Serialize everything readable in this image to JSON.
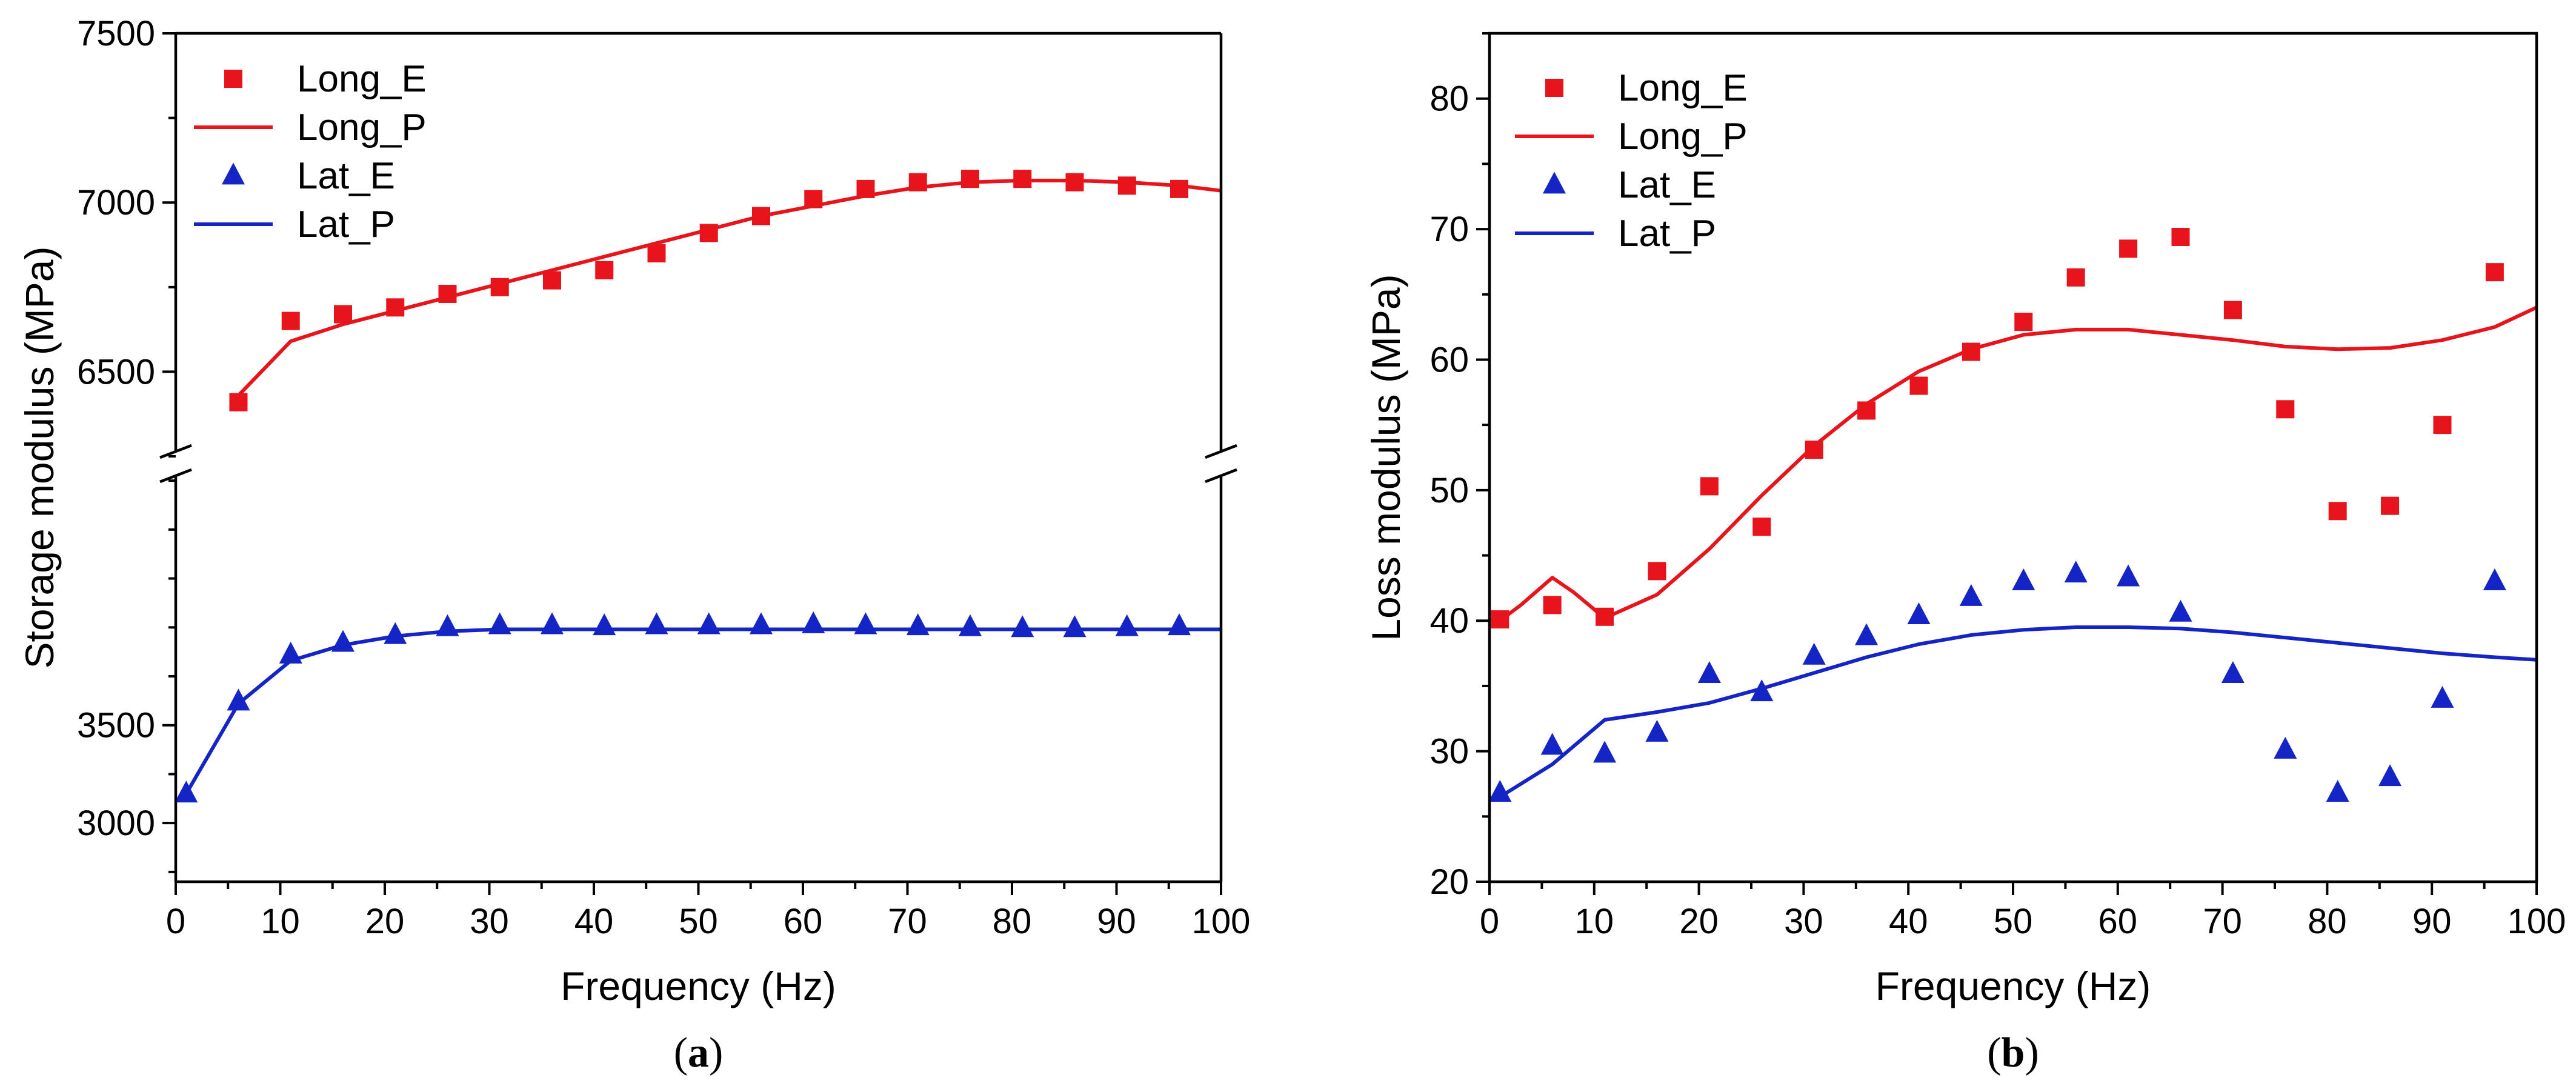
{
  "chart_data": [
    {
      "id": "a",
      "type": "scatter",
      "panel_label": "a",
      "xlabel": "Frequency (Hz)",
      "ylabel": "Storage modulus (MPa)",
      "xlim": [
        0,
        100
      ],
      "x_ticks": [
        0,
        10,
        20,
        30,
        40,
        50,
        60,
        70,
        80,
        90,
        100
      ],
      "y_axis_break": true,
      "y_segments": [
        {
          "range": [
            2700,
            4800
          ],
          "ticks": [
            3000,
            3500
          ]
        },
        {
          "range": [
            6250,
            7500
          ],
          "ticks": [
            6500,
            7000,
            7500
          ]
        }
      ],
      "legend_position": "top-left",
      "series": [
        {
          "name": "Long_E",
          "kind": "markers",
          "marker": "square",
          "color": "#e8141b",
          "x": [
            6,
            11,
            16,
            21,
            26,
            31,
            36,
            41,
            46,
            51,
            56,
            61,
            66,
            71,
            76,
            81,
            86,
            91,
            96
          ],
          "y": [
            6410,
            6650,
            6670,
            6690,
            6730,
            6750,
            6770,
            6800,
            6850,
            6910,
            6960,
            7010,
            7040,
            7060,
            7070,
            7070,
            7060,
            7050,
            7040
          ]
        },
        {
          "name": "Long_P",
          "kind": "line",
          "color": "#e8141b",
          "x": [
            6,
            11,
            16,
            21,
            26,
            31,
            36,
            41,
            46,
            51,
            56,
            61,
            66,
            71,
            76,
            81,
            86,
            91,
            96,
            100
          ],
          "y": [
            6430,
            6590,
            6640,
            6680,
            6720,
            6760,
            6800,
            6840,
            6880,
            6920,
            6960,
            6990,
            7020,
            7045,
            7060,
            7065,
            7065,
            7060,
            7050,
            7035
          ]
        },
        {
          "name": "Lat_E",
          "kind": "markers",
          "marker": "triangle",
          "color": "#1524c4",
          "x": [
            1,
            6,
            11,
            16,
            21,
            26,
            31,
            36,
            41,
            46,
            51,
            56,
            61,
            66,
            71,
            76,
            81,
            86,
            91,
            96
          ],
          "y": [
            3150,
            3620,
            3860,
            3920,
            3960,
            4000,
            4010,
            4010,
            4005,
            4010,
            4010,
            4010,
            4015,
            4010,
            4005,
            4000,
            3995,
            3995,
            4000,
            4005
          ]
        },
        {
          "name": "Lat_P",
          "kind": "line",
          "color": "#1524c4",
          "x": [
            1,
            6,
            11,
            16,
            21,
            26,
            31,
            36,
            41,
            46,
            51,
            56,
            61,
            66,
            71,
            76,
            81,
            86,
            91,
            96,
            100
          ],
          "y": [
            3150,
            3610,
            3830,
            3910,
            3955,
            3980,
            3990,
            3990,
            3990,
            3990,
            3990,
            3990,
            3990,
            3990,
            3990,
            3990,
            3990,
            3990,
            3990,
            3990,
            3990
          ]
        }
      ]
    },
    {
      "id": "b",
      "type": "scatter",
      "panel_label": "b",
      "xlabel": "Frequency (Hz)",
      "ylabel": "Loss modulus (MPa)",
      "xlim": [
        0,
        100
      ],
      "ylim": [
        20,
        85
      ],
      "x_ticks": [
        0,
        10,
        20,
        30,
        40,
        50,
        60,
        70,
        80,
        90,
        100
      ],
      "y_ticks": [
        20,
        30,
        40,
        50,
        60,
        70,
        80
      ],
      "legend_position": "top-left",
      "series": [
        {
          "name": "Long_E",
          "kind": "markers",
          "marker": "square",
          "color": "#e8141b",
          "x": [
            1,
            6,
            11,
            16,
            21,
            26,
            31,
            36,
            41,
            46,
            51,
            56,
            61,
            66,
            71,
            76,
            81,
            86,
            91,
            96
          ],
          "y": [
            40.1,
            41.2,
            40.3,
            43.8,
            50.3,
            47.2,
            53.1,
            56.1,
            58.0,
            60.6,
            62.9,
            66.3,
            68.5,
            69.4,
            63.8,
            56.2,
            48.4,
            48.8,
            55.0,
            66.7
          ]
        },
        {
          "name": "Long_P",
          "kind": "line",
          "color": "#e8141b",
          "x": [
            1,
            3,
            6,
            8,
            11,
            16,
            21,
            26,
            31,
            36,
            41,
            46,
            51,
            56,
            61,
            66,
            71,
            76,
            81,
            86,
            91,
            96,
            100
          ],
          "y": [
            40.0,
            41.2,
            43.3,
            42.2,
            40.2,
            42.0,
            45.5,
            49.6,
            53.4,
            56.6,
            59.1,
            60.8,
            61.9,
            62.3,
            62.3,
            61.9,
            61.5,
            61.0,
            60.8,
            60.9,
            61.5,
            62.5,
            64.0
          ]
        },
        {
          "name": "Lat_E",
          "kind": "markers",
          "marker": "triangle",
          "color": "#1524c4",
          "x": [
            1,
            6,
            11,
            16,
            21,
            26,
            31,
            36,
            41,
            46,
            51,
            56,
            61,
            66,
            71,
            76,
            81,
            86,
            91,
            96
          ],
          "y": [
            26.8,
            30.4,
            29.8,
            31.4,
            35.9,
            34.5,
            37.3,
            38.8,
            40.4,
            41.8,
            43.0,
            43.6,
            43.3,
            40.6,
            35.9,
            30.1,
            26.8,
            28.0,
            34.0,
            43.0
          ]
        },
        {
          "name": "Lat_P",
          "kind": "line",
          "color": "#1524c4",
          "x": [
            1,
            6,
            11,
            16,
            21,
            26,
            31,
            36,
            41,
            46,
            51,
            56,
            61,
            66,
            71,
            76,
            81,
            86,
            91,
            96,
            100
          ],
          "y": [
            26.5,
            29.0,
            32.4,
            33.0,
            33.7,
            34.8,
            36.0,
            37.2,
            38.2,
            38.9,
            39.3,
            39.5,
            39.5,
            39.4,
            39.1,
            38.7,
            38.3,
            37.9,
            37.5,
            37.2,
            37.0
          ]
        }
      ]
    }
  ]
}
